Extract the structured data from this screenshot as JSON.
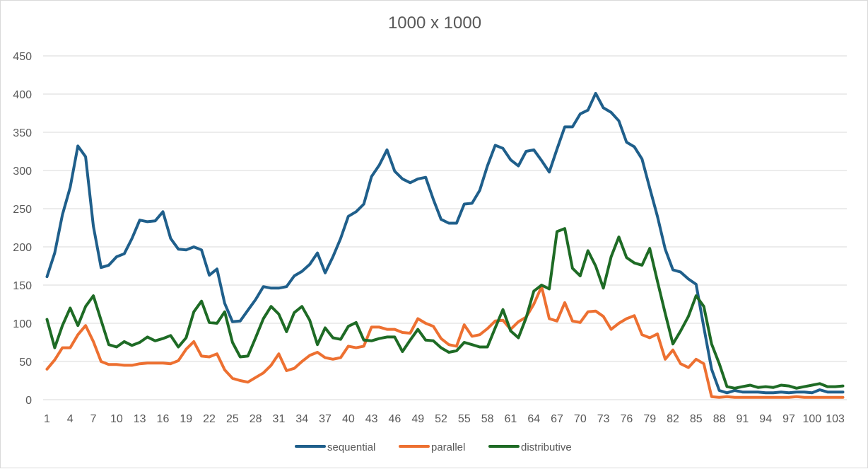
{
  "chart_data": {
    "type": "line",
    "title": "1000 x 1000",
    "ylim": [
      0,
      450
    ],
    "yticks": [
      0,
      50,
      100,
      150,
      200,
      250,
      300,
      350,
      400,
      450
    ],
    "xticks": [
      1,
      4,
      7,
      10,
      13,
      16,
      19,
      22,
      25,
      28,
      31,
      34,
      37,
      40,
      43,
      46,
      49,
      52,
      55,
      58,
      61,
      64,
      67,
      70,
      73,
      76,
      79,
      82,
      85,
      88,
      91,
      94,
      97,
      100,
      103
    ],
    "x_count": 104,
    "grid": true,
    "legend_position": "bottom",
    "series": [
      {
        "name": "sequential",
        "color": "#1f5f8b",
        "values": [
          161,
          192,
          242,
          278,
          332,
          318,
          227,
          173,
          176,
          187,
          191,
          211,
          235,
          233,
          234,
          246,
          211,
          197,
          196,
          200,
          196,
          163,
          171,
          126,
          102,
          103,
          117,
          131,
          148,
          146,
          146,
          148,
          162,
          168,
          177,
          192,
          166,
          187,
          211,
          240,
          246,
          256,
          292,
          307,
          327,
          299,
          289,
          284,
          289,
          291,
          262,
          236,
          231,
          231,
          256,
          257,
          274,
          306,
          333,
          329,
          314,
          306,
          325,
          327,
          313,
          298,
          328,
          357,
          357,
          374,
          379,
          401,
          382,
          376,
          365,
          337,
          331,
          315,
          277,
          240,
          197,
          170,
          167,
          158,
          151,
          95,
          40,
          12,
          9,
          12,
          10,
          10,
          10,
          9,
          9,
          10,
          9,
          10,
          10,
          9,
          13,
          10,
          10,
          10
        ]
      },
      {
        "name": "parallel",
        "color": "#ed7031",
        "values": [
          40,
          52,
          68,
          68,
          85,
          97,
          76,
          50,
          46,
          46,
          45,
          45,
          47,
          48,
          48,
          48,
          47,
          51,
          66,
          76,
          57,
          56,
          60,
          39,
          28,
          25,
          23,
          29,
          35,
          45,
          60,
          38,
          41,
          50,
          58,
          62,
          55,
          53,
          55,
          70,
          68,
          70,
          95,
          95,
          92,
          92,
          88,
          87,
          106,
          100,
          96,
          80,
          72,
          70,
          98,
          83,
          85,
          93,
          103,
          104,
          92,
          102,
          108,
          125,
          148,
          106,
          103,
          127,
          103,
          101,
          115,
          116,
          109,
          92,
          100,
          106,
          110,
          85,
          81,
          86,
          53,
          65,
          47,
          42,
          53,
          47,
          4,
          3,
          4,
          3,
          3,
          3,
          3,
          3,
          3,
          3,
          3,
          4,
          3,
          3,
          3,
          3,
          3,
          3
        ]
      },
      {
        "name": "distributive",
        "color": "#1e6b25",
        "values": [
          105,
          68,
          97,
          120,
          97,
          122,
          136,
          104,
          72,
          69,
          76,
          71,
          75,
          82,
          77,
          80,
          84,
          69,
          81,
          115,
          129,
          101,
          100,
          115,
          75,
          56,
          57,
          81,
          106,
          122,
          112,
          89,
          114,
          122,
          104,
          72,
          94,
          81,
          79,
          96,
          101,
          78,
          77,
          80,
          82,
          82,
          63,
          78,
          92,
          78,
          77,
          68,
          62,
          64,
          75,
          72,
          69,
          69,
          94,
          118,
          90,
          81,
          107,
          142,
          150,
          145,
          220,
          224,
          172,
          162,
          195,
          175,
          146,
          187,
          213,
          186,
          179,
          176,
          198,
          155,
          113,
          73,
          90,
          109,
          136,
          122,
          73,
          47,
          17,
          15,
          17,
          19,
          16,
          17,
          16,
          19,
          18,
          15,
          17,
          19,
          21,
          17,
          17,
          18
        ]
      }
    ]
  }
}
